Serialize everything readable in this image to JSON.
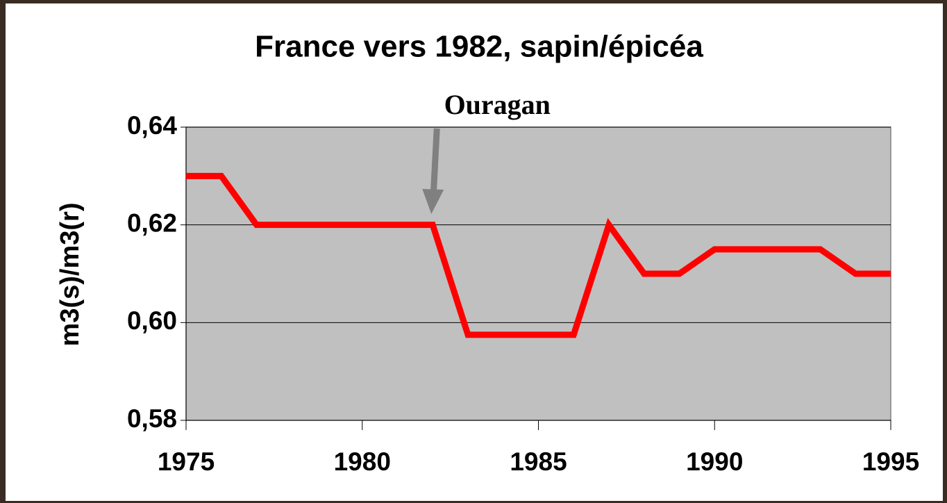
{
  "chart_data": {
    "type": "line",
    "title": "France vers 1982, sapin/épicéa",
    "y_label": "m3(s)/m3(r)",
    "x": [
      1975,
      1976,
      1977,
      1978,
      1979,
      1980,
      1981,
      1982,
      1983,
      1984,
      1985,
      1986,
      1987,
      1988,
      1989,
      1990,
      1991,
      1992,
      1993,
      1994,
      1995
    ],
    "series": [
      {
        "color": "#ff0000",
        "values": [
          0.63,
          0.63,
          0.62,
          0.62,
          0.62,
          0.62,
          0.62,
          0.62,
          0.5975,
          0.5975,
          0.5975,
          0.5975,
          0.62,
          0.61,
          0.61,
          0.615,
          0.615,
          0.615,
          0.615,
          0.61,
          0.61
        ]
      }
    ],
    "xlim": [
      1975,
      1995
    ],
    "xticks": [
      1975,
      1980,
      1985,
      1990,
      1995
    ],
    "ylim": [
      0.58,
      0.64
    ],
    "yticks": [
      {
        "value": 0.58,
        "label": "0,58"
      },
      {
        "value": 0.6,
        "label": "0,60"
      },
      {
        "value": 0.62,
        "label": "0,62"
      },
      {
        "value": 0.64,
        "label": "0,64"
      }
    ],
    "grid": true,
    "annotations": [
      {
        "text": "Ouragan",
        "x": 1982,
        "color": "#808080"
      }
    ]
  }
}
